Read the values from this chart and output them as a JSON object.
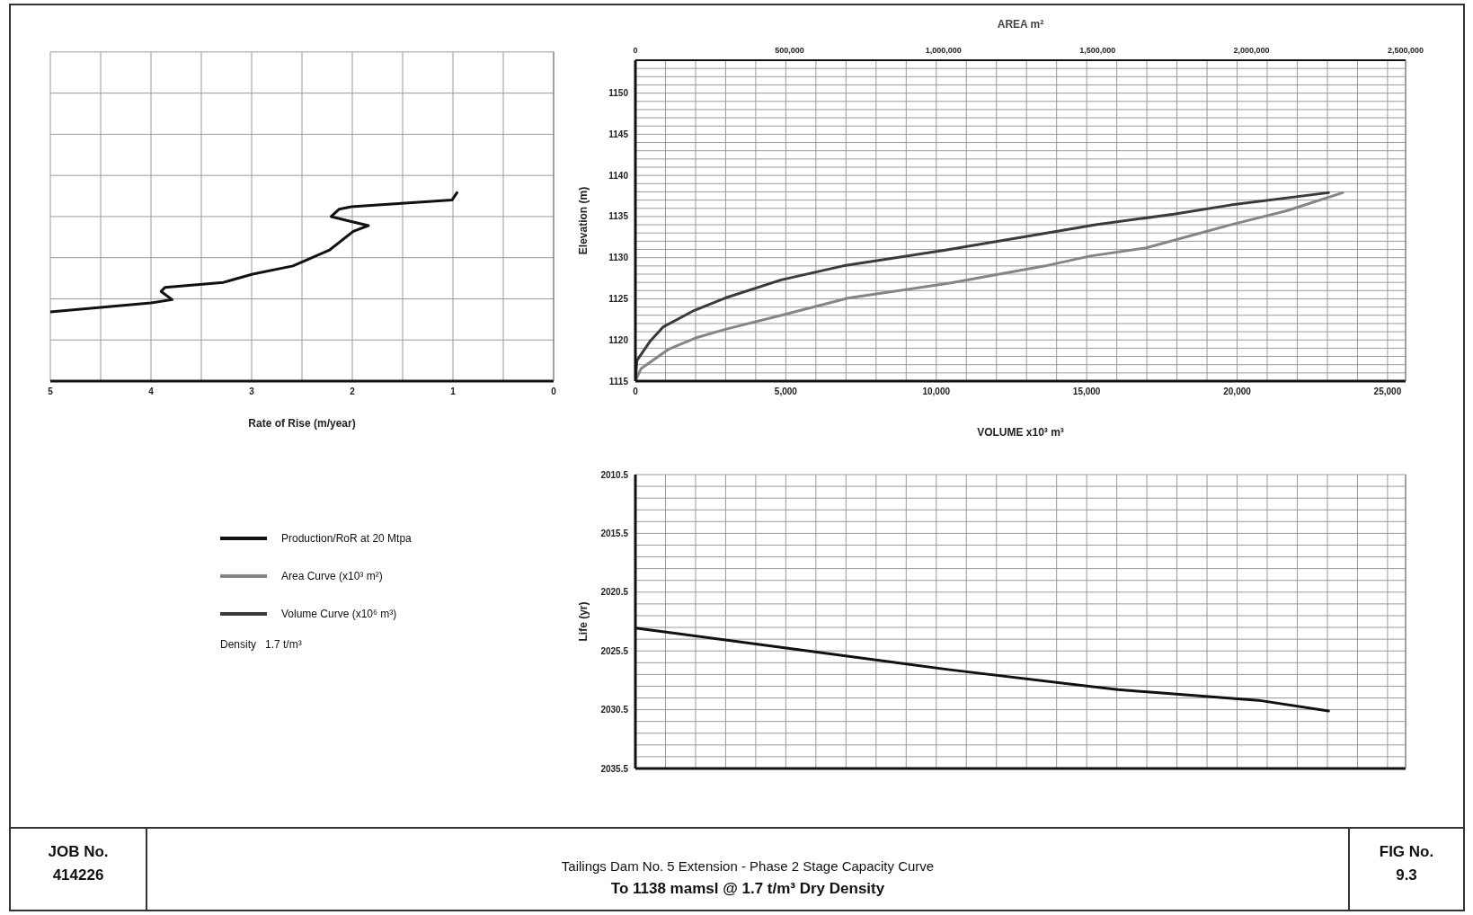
{
  "chart_data": [
    {
      "type": "line",
      "xlabel": "Rate of Rise (m/year)",
      "annotations": [
        "Density   1.7 t/m³"
      ],
      "xlim": [
        5,
        0
      ],
      "xticks": [
        0,
        {
          "value": 0.5,
          "label": null
        },
        1,
        {
          "value": 1.5,
          "label": null
        },
        2,
        {
          "value": 2.5,
          "label": null
        },
        3,
        {
          "value": 3.5,
          "label": null
        },
        4,
        {
          "value": 4.5,
          "label": null
        },
        5
      ],
      "ylim": [
        1115,
        1155
      ],
      "yticks": [
        1115,
        1120,
        1125,
        1130,
        1135,
        1140,
        1145,
        1150,
        1155
      ],
      "tick_labels": "x",
      "grid": true,
      "legend": "bottom",
      "series": [
        {
          "name": "Production/RoR at 20 Mtpa",
          "color": "#111111",
          "x": [
            5,
            4,
            3.79,
            3.9,
            3.86,
            3.28,
            2.99,
            2.59,
            2.23,
            1.99,
            1.84,
            2.01,
            2.21,
            2.13,
            2.01,
            1.01,
            0.96
          ],
          "values": [
            1123.4,
            1124.5,
            1124.9,
            1125.9,
            1126.4,
            1127,
            1128,
            1129,
            1130.9,
            1133.2,
            1133.9,
            1134.4,
            1135,
            1135.9,
            1136.2,
            1137,
            1137.9
          ]
        }
      ]
    },
    {
      "type": "line",
      "xlabel": "VOLUME  x10³ m³",
      "x2label": "AREA  m²",
      "ylabel": "Elevation (m)",
      "grid": true,
      "legend": "left",
      "xlim": [
        0,
        25600
      ],
      "xticks": [
        0,
        {
          "value": 1000,
          "label": null
        },
        {
          "value": 2000,
          "label": null
        },
        {
          "value": 3000,
          "label": null
        },
        {
          "value": 4000,
          "label": null
        },
        {
          "value": 5000,
          "label": "5,000"
        },
        {
          "value": 6000,
          "label": null
        },
        {
          "value": 7000,
          "label": null
        },
        {
          "value": 8000,
          "label": null
        },
        {
          "value": 9000,
          "label": null
        },
        {
          "value": 10000,
          "label": "10,000"
        },
        {
          "value": 11000,
          "label": null
        },
        {
          "value": 12000,
          "label": null
        },
        {
          "value": 13000,
          "label": null
        },
        {
          "value": 14000,
          "label": null
        },
        {
          "value": 15000,
          "label": "15,000"
        },
        {
          "value": 16000,
          "label": null
        },
        {
          "value": 17000,
          "label": null
        },
        {
          "value": 18000,
          "label": null
        },
        {
          "value": 19000,
          "label": null
        },
        {
          "value": 20000,
          "label": "20,000"
        },
        {
          "value": 21000,
          "label": null
        },
        {
          "value": 22000,
          "label": null
        },
        {
          "value": 23000,
          "label": null
        },
        {
          "value": 24000,
          "label": null
        },
        {
          "value": 25000,
          "label": "25,000"
        }
      ],
      "x2lim": [
        0,
        2500000
      ],
      "x2ticks": [
        0,
        {
          "value": 500000,
          "label": "500,000"
        },
        {
          "value": 1000000,
          "label": "1,000,000"
        },
        {
          "value": 1500000,
          "label": "1,500,000"
        },
        {
          "value": 2000000,
          "label": "2,000,000"
        },
        {
          "value": 2500000,
          "label": "2,500,000"
        }
      ],
      "ylim": [
        1115,
        1154
      ],
      "yticks": [
        1115,
        {
          "value": 1116,
          "label": null
        },
        {
          "value": 1117,
          "label": null
        },
        {
          "value": 1118,
          "label": null
        },
        {
          "value": 1119,
          "label": null
        },
        1120,
        {
          "value": 1121,
          "label": null
        },
        {
          "value": 1122,
          "label": null
        },
        {
          "value": 1123,
          "label": null
        },
        {
          "value": 1124,
          "label": null
        },
        1125,
        {
          "value": 1126,
          "label": null
        },
        {
          "value": 1127,
          "label": null
        },
        {
          "value": 1128,
          "label": null
        },
        {
          "value": 1129,
          "label": null
        },
        1130,
        {
          "value": 1131,
          "label": null
        },
        {
          "value": 1132,
          "label": null
        },
        {
          "value": 1133,
          "label": null
        },
        {
          "value": 1134,
          "label": null
        },
        1135,
        {
          "value": 1136,
          "label": null
        },
        {
          "value": 1137,
          "label": null
        },
        {
          "value": 1138,
          "label": null
        },
        {
          "value": 1139,
          "label": null
        },
        1140,
        {
          "value": 1141,
          "label": null
        },
        {
          "value": 1142,
          "label": null
        },
        {
          "value": 1143,
          "label": null
        },
        {
          "value": 1144,
          "label": null
        },
        1145,
        {
          "value": 1146,
          "label": null
        },
        {
          "value": 1147,
          "label": null
        },
        {
          "value": 1148,
          "label": null
        },
        {
          "value": 1149,
          "label": null
        },
        1150,
        {
          "value": 1151,
          "label": null
        },
        {
          "value": 1152,
          "label": null
        },
        {
          "value": 1153,
          "label": null
        },
        {
          "value": 1154,
          "label": null
        }
      ],
      "series": [
        {
          "name": "Area Curve (x10³ m²)",
          "color": "#858585",
          "axis": "x2",
          "x": [
            0,
            18000,
            109000,
            200000,
            292000,
            474000,
            692000,
            1020000,
            1330000,
            1476000,
            1658000,
            1932000,
            2114000,
            2296000
          ],
          "values": [
            1115,
            1116.5,
            1118.9,
            1120.3,
            1121.3,
            1123,
            1125.1,
            1126.9,
            1129,
            1130.2,
            1131.2,
            1134,
            1135.7,
            1137.9
          ]
        },
        {
          "name": "Volume Curve (x10⁶ m³)",
          "color": "#3a3a3a",
          "x": [
            0,
            50,
            500,
            930,
            1960,
            2985,
            4850,
            6900,
            10260,
            15300,
            17900,
            19780,
            23040
          ],
          "values": [
            1115,
            1117.5,
            1119.9,
            1121.6,
            1123.6,
            1125.1,
            1127.3,
            1129,
            1130.9,
            1134,
            1135.3,
            1136.4,
            1137.9
          ]
        }
      ]
    },
    {
      "type": "line",
      "ylabel": "Life (yr)",
      "grid": true,
      "tick_labels": "y",
      "xlim": [
        0,
        25600
      ],
      "xticks": [
        {
          "value": 0,
          "label": null
        },
        {
          "value": 1000,
          "label": null
        },
        {
          "value": 2000,
          "label": null
        },
        {
          "value": 3000,
          "label": null
        },
        {
          "value": 4000,
          "label": null
        },
        {
          "value": 5000,
          "label": null
        },
        {
          "value": 6000,
          "label": null
        },
        {
          "value": 7000,
          "label": null
        },
        {
          "value": 8000,
          "label": null
        },
        {
          "value": 9000,
          "label": null
        },
        {
          "value": 10000,
          "label": null
        },
        {
          "value": 11000,
          "label": null
        },
        {
          "value": 12000,
          "label": null
        },
        {
          "value": 13000,
          "label": null
        },
        {
          "value": 14000,
          "label": null
        },
        {
          "value": 15000,
          "label": null
        },
        {
          "value": 16000,
          "label": null
        },
        {
          "value": 17000,
          "label": null
        },
        {
          "value": 18000,
          "label": null
        },
        {
          "value": 19000,
          "label": null
        },
        {
          "value": 20000,
          "label": null
        },
        {
          "value": 21000,
          "label": null
        },
        {
          "value": 22000,
          "label": null
        },
        {
          "value": 23000,
          "label": null
        },
        {
          "value": 24000,
          "label": null
        },
        {
          "value": 25000,
          "label": null
        }
      ],
      "ylim": [
        2035.5,
        2010.5
      ],
      "yticks": [
        2010.5,
        {
          "value": 2011.5,
          "label": null
        },
        {
          "value": 2012.5,
          "label": null
        },
        {
          "value": 2013.5,
          "label": null
        },
        {
          "value": 2014.5,
          "label": null
        },
        2015.5,
        {
          "value": 2016.5,
          "label": null
        },
        {
          "value": 2017.5,
          "label": null
        },
        {
          "value": 2018.5,
          "label": null
        },
        {
          "value": 2019.5,
          "label": null
        },
        2020.5,
        {
          "value": 2021.5,
          "label": null
        },
        {
          "value": 2022.5,
          "label": null
        },
        {
          "value": 2023.5,
          "label": null
        },
        {
          "value": 2024.5,
          "label": null
        },
        2025.5,
        {
          "value": 2026.5,
          "label": null
        },
        {
          "value": 2027.5,
          "label": null
        },
        {
          "value": 2028.5,
          "label": null
        },
        {
          "value": 2029.5,
          "label": null
        },
        2030.5,
        {
          "value": 2031.5,
          "label": null
        },
        {
          "value": 2032.5,
          "label": null
        },
        {
          "value": 2033.5,
          "label": null
        },
        {
          "value": 2034.5,
          "label": null
        },
        2035.5
      ],
      "series": [
        {
          "color": "#111111",
          "x": [
            0,
            4850,
            10450,
            16040,
            20710,
            23040
          ],
          "values": [
            2023.55,
            2025.2,
            2027.1,
            2028.8,
            2029.7,
            2030.6
          ]
        }
      ]
    },
    {
      "type": "other",
      "title": "Tailings Dam No. 5 Extension - Phase 2 Stage Capacity Curve",
      "subtitle": "To 1138 mamsl @ 1.7 t/m³ Dry Density",
      "annotations": [
        "JOB No.",
        "414226",
        "FIG No.",
        "9.3"
      ]
    }
  ]
}
